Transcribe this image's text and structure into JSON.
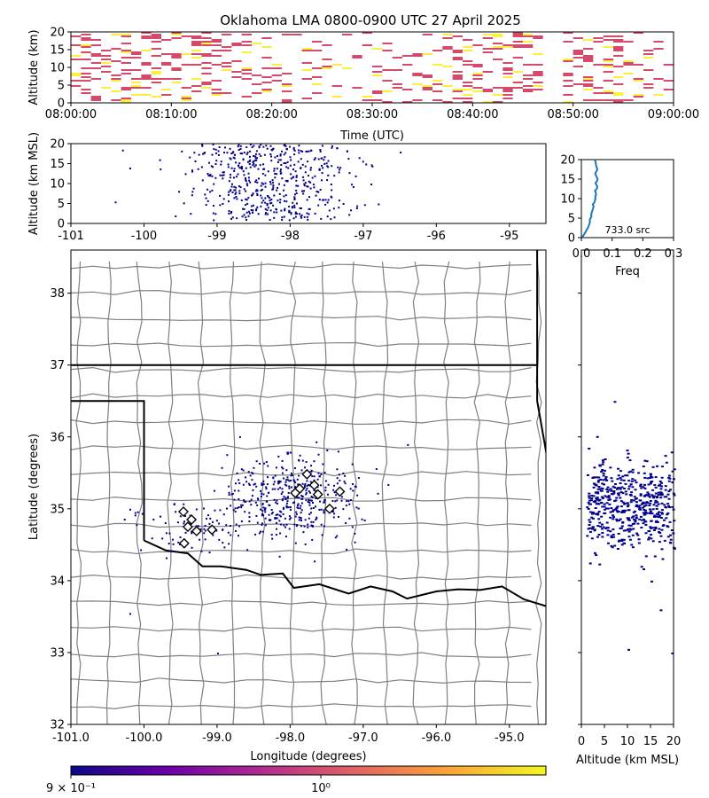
{
  "title": "Oklahoma LMA 0800-0900 UTC 27 April 2025",
  "colors": {
    "series_dark": "#00008b",
    "map_state_border": "#000000",
    "map_county_border": "#808080",
    "hist_line": "#1f77b4",
    "diamond_face": "#ffffff",
    "time_fill_a": "#d44a6a",
    "time_fill_b": "#f9f040"
  },
  "chart_data": [
    {
      "id": "time-height",
      "type": "heatmap",
      "xlabel": "Time (UTC)",
      "ylabel": "Altitude (km)",
      "xtick_labels": [
        "08:00:00",
        "08:10:00",
        "08:20:00",
        "08:30:00",
        "08:40:00",
        "08:50:00",
        "09:00:00"
      ],
      "ytick_labels": [
        "0",
        "5",
        "10",
        "15",
        "20"
      ],
      "xlim": [
        "08:00:00",
        "09:00:00"
      ],
      "ylim": [
        0,
        20
      ]
    },
    {
      "id": "lon-alt",
      "type": "scatter",
      "xlabel": "",
      "ylabel": "Altitude (km MSL)",
      "xtick_labels": [
        "-101",
        "-100",
        "-99",
        "-98",
        "-97",
        "-96",
        "-95"
      ],
      "ytick_labels": [
        "0",
        "5",
        "10",
        "15",
        "20"
      ],
      "xlim": [
        -101,
        -94.5
      ],
      "ylim": [
        0,
        20
      ]
    },
    {
      "id": "alt-histogram",
      "type": "line",
      "xlabel": "Freq",
      "annotation": "733.0 src",
      "xtick_labels": [
        "0.0",
        "0.1",
        "0.2",
        "0.3"
      ],
      "ytick_labels": [
        "0",
        "5",
        "10",
        "15",
        "20"
      ],
      "xlim": [
        0,
        0.3
      ],
      "ylim": [
        0,
        20
      ],
      "x": [
        0.003,
        0.006,
        0.01,
        0.014,
        0.017,
        0.021,
        0.024,
        0.026,
        0.028,
        0.027,
        0.03,
        0.033,
        0.032,
        0.034,
        0.036,
        0.038,
        0.04,
        0.037,
        0.042,
        0.044,
        0.046,
        0.045,
        0.048,
        0.047,
        0.044,
        0.05,
        0.052,
        0.049,
        0.046,
        0.051,
        0.053,
        0.05,
        0.047,
        0.045,
        0.049,
        0.052,
        0.05,
        0.048,
        0.047,
        0.046,
        0.043
      ],
      "y": [
        0,
        0.5,
        1,
        1.5,
        2,
        2.5,
        3,
        3.5,
        4,
        4.5,
        5,
        5.5,
        6,
        6.5,
        7,
        7.5,
        8,
        8.5,
        9,
        9.5,
        10,
        10.5,
        11,
        11.5,
        12,
        12.5,
        13,
        13.5,
        14,
        14.5,
        15,
        15.5,
        16,
        16.5,
        17,
        17.5,
        18,
        18.5,
        19,
        19.5,
        20
      ]
    },
    {
      "id": "plan-view",
      "type": "scatter",
      "xlabel": "Longitude (degrees)",
      "ylabel": "Latitude (degrees)",
      "xtick_labels": [
        "-101.0",
        "-100.0",
        "-99.0",
        "-98.0",
        "-97.0",
        "-96.0",
        "-95.0"
      ],
      "ytick_labels": [
        "32",
        "33",
        "34",
        "35",
        "36",
        "37",
        "38"
      ],
      "xlim": [
        -101,
        -94.5
      ],
      "ylim": [
        32,
        38.6
      ],
      "stations": [
        {
          "lon": -97.77,
          "lat": 35.48
        },
        {
          "lon": -97.67,
          "lat": 35.33
        },
        {
          "lon": -97.87,
          "lat": 35.28
        },
        {
          "lon": -97.62,
          "lat": 35.2
        },
        {
          "lon": -97.93,
          "lat": 35.22
        },
        {
          "lon": -97.32,
          "lat": 35.24
        },
        {
          "lon": -97.46,
          "lat": 35.0
        },
        {
          "lon": -99.46,
          "lat": 34.96
        },
        {
          "lon": -99.35,
          "lat": 34.85
        },
        {
          "lon": -99.4,
          "lat": 34.75
        },
        {
          "lon": -99.28,
          "lat": 34.69
        },
        {
          "lon": -99.07,
          "lat": 34.71
        },
        {
          "lon": -99.45,
          "lat": 34.52
        }
      ]
    },
    {
      "id": "alt-lat",
      "type": "scatter",
      "xlabel": "Altitude (km MSL)",
      "xtick_labels": [
        "0",
        "5",
        "10",
        "15",
        "20"
      ],
      "xlim": [
        0,
        20
      ],
      "ylim": [
        32,
        38.6
      ]
    }
  ],
  "colorbar": {
    "tick_labels": [
      "9 × 10⁻¹",
      "10⁰"
    ],
    "stops": [
      "#0d0887",
      "#6a00a8",
      "#b12a90",
      "#e16462",
      "#fca636",
      "#f0f921"
    ]
  }
}
